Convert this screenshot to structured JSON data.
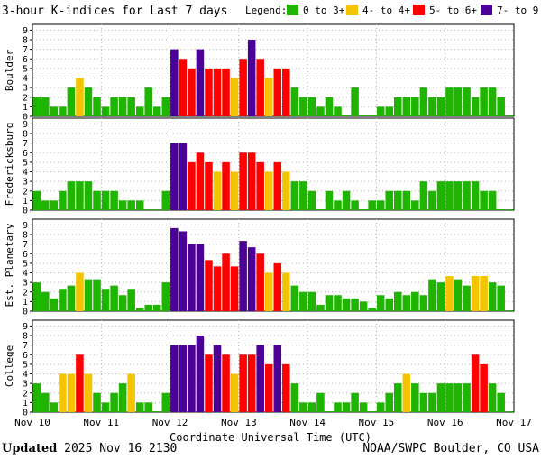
{
  "title": "3-hour K-indices for Last 7 days",
  "legend": {
    "label": "Legend:",
    "items": [
      {
        "label": "0 to 3+",
        "color": "#1fb400"
      },
      {
        "label": "4- to 4+",
        "color": "#f5c400"
      },
      {
        "label": "5- to 6+",
        "color": "#ff0000"
      },
      {
        "label": "7- to 9",
        "color": "#4b0096"
      }
    ]
  },
  "footer": {
    "updated_label": "Updated",
    "updated_value": "2025 Nov 16 2130",
    "source": "NOAA/SWPC Boulder, CO USA"
  },
  "chart_data": {
    "type": "bar",
    "xlabel": "Coordinate Universal Time (UTC)",
    "x_tick_labels": [
      "Nov 10",
      "Nov 11",
      "Nov 12",
      "Nov 13",
      "Nov 14",
      "Nov 15",
      "Nov 16",
      "Nov 17"
    ],
    "y_tick_labels": [
      "0",
      "1",
      "2",
      "3",
      "4",
      "5",
      "6",
      "7",
      "8",
      "9"
    ],
    "ylim": [
      0,
      9
    ],
    "grid": "dotted",
    "bars_per_day": 8,
    "panels": [
      {
        "name": "Boulder",
        "values": [
          2,
          2,
          1,
          1,
          3,
          4,
          3,
          2,
          1,
          2,
          2,
          2,
          1,
          3,
          1,
          2,
          7,
          6,
          5,
          7,
          5,
          5,
          5,
          4,
          6,
          8,
          6,
          4,
          5,
          5,
          3,
          2,
          2,
          1,
          2,
          1,
          0,
          3,
          0,
          0,
          1,
          1,
          2,
          2,
          2,
          3,
          2,
          2,
          3,
          3,
          3,
          2,
          3,
          3,
          2,
          0
        ]
      },
      {
        "name": "Fredericksburg",
        "values": [
          2,
          1,
          1,
          2,
          3,
          3,
          3,
          2,
          2,
          2,
          1,
          1,
          1,
          0,
          0,
          2,
          7,
          7,
          5,
          6,
          5,
          4,
          5,
          4,
          6,
          6,
          5,
          4,
          5,
          4,
          3,
          3,
          2,
          0,
          2,
          1,
          2,
          1,
          0,
          1,
          1,
          2,
          2,
          2,
          1,
          3,
          2,
          3,
          3,
          3,
          3,
          3,
          2,
          2,
          0,
          0
        ]
      },
      {
        "name": "Est. Planetary",
        "values": [
          3,
          2,
          1.33,
          2.33,
          2.67,
          4,
          3.33,
          3.33,
          2.33,
          2.67,
          1.67,
          2.33,
          0.33,
          0.67,
          0.67,
          3,
          8.67,
          8.33,
          7,
          7,
          5.33,
          4.67,
          6,
          4.67,
          7.33,
          6.67,
          6,
          4,
          5,
          4,
          2.67,
          2,
          2,
          0.67,
          1.67,
          1.67,
          1.33,
          1.33,
          1,
          0.33,
          1.67,
          1.33,
          2,
          1.67,
          2,
          1.67,
          3.33,
          3,
          3.67,
          3.33,
          2.67,
          3.67,
          3.67,
          3,
          2.67,
          0
        ]
      },
      {
        "name": "College",
        "values": [
          3,
          2,
          1,
          4,
          4,
          6,
          4,
          2,
          1,
          2,
          3,
          4,
          1,
          1,
          0,
          2,
          7,
          7,
          7,
          8,
          6,
          7,
          6,
          4,
          6,
          6,
          7,
          5,
          7,
          5,
          3,
          1,
          1,
          2,
          0,
          1,
          1,
          2,
          1,
          0,
          1,
          2,
          3,
          4,
          3,
          2,
          2,
          3,
          3,
          3,
          3,
          6,
          5,
          3,
          2,
          0
        ]
      }
    ]
  }
}
